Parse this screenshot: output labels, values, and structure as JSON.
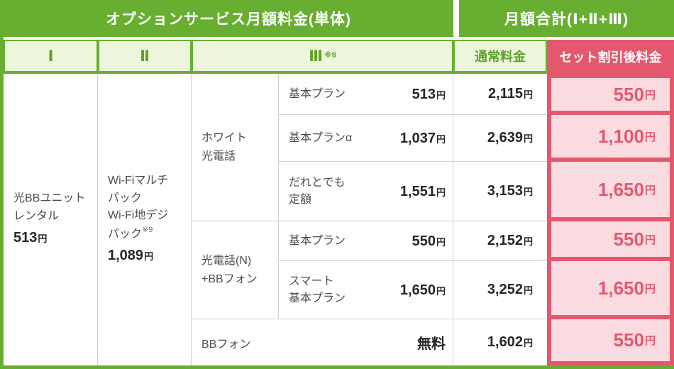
{
  "colors": {
    "green": "#67ae31",
    "green_light": "#edf6dd",
    "green_text": "#5da32a",
    "pink": "#e4586e",
    "pink_light": "#fadbe1"
  },
  "header": {
    "left": "オプションサービス月額料金(単体)",
    "right": "月額合計(Ⅰ+Ⅱ+Ⅲ)"
  },
  "subheader": {
    "col1": "Ⅰ",
    "col2": "Ⅱ",
    "col3": "Ⅲ",
    "col3_note": "※8",
    "normal": "通常料金",
    "discount": "セット割引後料金"
  },
  "service1": {
    "line1": "光BBユニット",
    "line2": "レンタル",
    "price": "513",
    "unit": "円"
  },
  "service2": {
    "line1": "Wi-Fiマルチ",
    "line2": "パック",
    "line3": "Wi-Fi地デジ",
    "line4": "パック",
    "note": "※9",
    "price": "1,089",
    "unit": "円"
  },
  "groups": {
    "white_hikari": {
      "line1": "ホワイト",
      "line2": "光電話"
    },
    "hikari_n": {
      "line1": "光電話(N)",
      "line2": "+BBフォン"
    }
  },
  "rows": [
    {
      "name1": "基本プラン",
      "price": "513",
      "unit": "円",
      "normal": "2,115",
      "normal_unit": "円",
      "discount": "550",
      "discount_unit": "円"
    },
    {
      "name1": "基本プランα",
      "price": "1,037",
      "unit": "円",
      "normal": "2,639",
      "normal_unit": "円",
      "discount": "1,100",
      "discount_unit": "円"
    },
    {
      "name1": "だれとでも",
      "name2": "定額",
      "price": "1,551",
      "unit": "円",
      "normal": "3,153",
      "normal_unit": "円",
      "discount": "1,650",
      "discount_unit": "円"
    },
    {
      "name1": "基本プラン",
      "price": "550",
      "unit": "円",
      "normal": "2,152",
      "normal_unit": "円",
      "discount": "550",
      "discount_unit": "円"
    },
    {
      "name1": "スマート",
      "name2": "基本プラン",
      "price": "1,650",
      "unit": "円",
      "normal": "3,252",
      "normal_unit": "円",
      "discount": "1,650",
      "discount_unit": "円"
    },
    {
      "name1": "BBフォン",
      "price": "無料",
      "normal": "1,602",
      "normal_unit": "円",
      "discount": "550",
      "discount_unit": "円"
    }
  ]
}
